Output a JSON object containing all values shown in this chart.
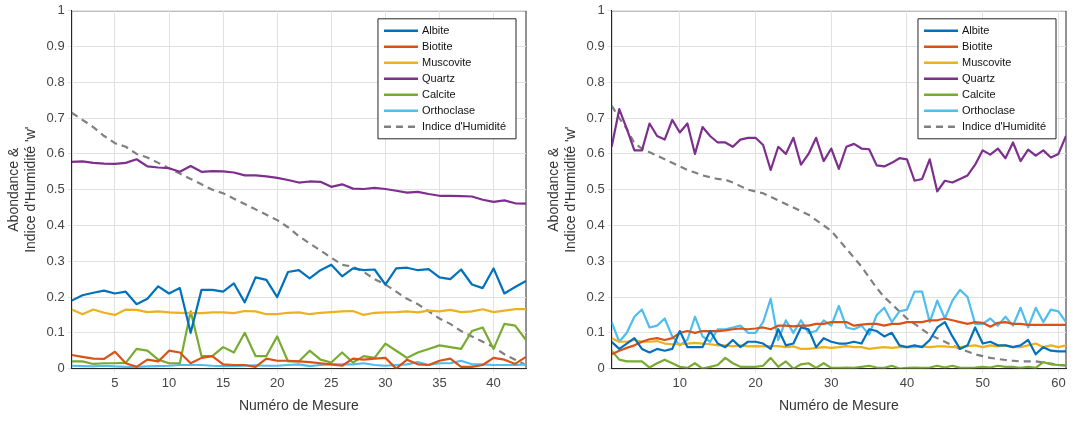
{
  "chart_data": [
    {
      "type": "line",
      "xlabel": "Numéro de Mesure",
      "ylabel": "Abondance &\nIndice d'Humidité 'w'",
      "x": [
        1,
        2,
        3,
        4,
        5,
        6,
        7,
        8,
        9,
        10,
        11,
        12,
        13,
        14,
        15,
        16,
        17,
        18,
        19,
        20,
        21,
        22,
        23,
        24,
        25,
        26,
        27,
        28,
        29,
        30,
        31,
        32,
        33,
        34,
        35,
        36,
        37,
        38,
        39,
        40,
        41,
        42,
        43
      ],
      "xlim": [
        1,
        43
      ],
      "xticks": [
        5,
        10,
        15,
        20,
        25,
        30,
        35,
        40
      ],
      "ylim": [
        0,
        1
      ],
      "yticks": [
        0,
        0.1,
        0.2,
        0.3,
        0.4,
        0.5,
        0.6,
        0.7,
        0.8,
        0.9,
        1
      ],
      "grid": true,
      "legend": "top right",
      "marker": "none",
      "series": [
        {
          "name": "Albite",
          "color": "#0072bd",
          "line_style": "solid",
          "values": [
            0.19,
            0.205,
            0.212,
            0.218,
            0.21,
            0.215,
            0.18,
            0.195,
            0.23,
            0.21,
            0.225,
            0.1,
            0.22,
            0.22,
            0.215,
            0.238,
            0.185,
            0.255,
            0.248,
            0.2,
            0.27,
            0.275,
            0.252,
            0.275,
            0.29,
            0.258,
            0.28,
            0.275,
            0.277,
            0.235,
            0.28,
            0.282,
            0.275,
            0.278,
            0.255,
            0.25,
            0.277,
            0.235,
            0.225,
            0.28,
            0.21,
            0.228,
            0.245
          ]
        },
        {
          "name": "Biotite",
          "color": "#d95319",
          "line_style": "solid",
          "values": [
            0.038,
            0.033,
            0.028,
            0.027,
            0.047,
            0.015,
            0.005,
            0.025,
            0.02,
            0.05,
            0.045,
            0.015,
            0.03,
            0.035,
            0.012,
            0.01,
            0.01,
            0.005,
            0.028,
            0.022,
            0.022,
            0.02,
            0.018,
            0.015,
            0.012,
            0.008,
            0.028,
            0.025,
            0.028,
            0.03,
            0,
            0.025,
            0.012,
            0.01,
            0.022,
            0.028,
            0.005,
            0.005,
            0.01,
            0.03,
            0.025,
            0.013,
            0.033
          ]
        },
        {
          "name": "Muscovite",
          "color": "#edb120",
          "line_style": "solid",
          "values": [
            0.165,
            0.152,
            0.165,
            0.156,
            0.15,
            0.165,
            0.164,
            0.158,
            0.16,
            0.157,
            0.156,
            0.155,
            0.155,
            0.157,
            0.157,
            0.155,
            0.161,
            0.16,
            0.152,
            0.152,
            0.156,
            0.157,
            0.152,
            0.156,
            0.158,
            0.16,
            0.161,
            0.15,
            0.156,
            0.157,
            0.158,
            0.16,
            0.157,
            0.162,
            0.16,
            0.164,
            0.158,
            0.16,
            0.166,
            0.158,
            0.162,
            0.166,
            0.166
          ]
        },
        {
          "name": "Quartz",
          "color": "#7e2f8e",
          "line_style": "solid",
          "values": [
            0.578,
            0.579,
            0.575,
            0.573,
            0.572,
            0.575,
            0.585,
            0.565,
            0.562,
            0.56,
            0.55,
            0.566,
            0.55,
            0.552,
            0.551,
            0.548,
            0.54,
            0.54,
            0.537,
            0.533,
            0.527,
            0.52,
            0.523,
            0.522,
            0.508,
            0.515,
            0.503,
            0.502,
            0.505,
            0.502,
            0.497,
            0.492,
            0.494,
            0.488,
            0.483,
            0.483,
            0.482,
            0.481,
            0.472,
            0.466,
            0.47,
            0.462,
            0.461
          ]
        },
        {
          "name": "Calcite",
          "color": "#77ac30",
          "line_style": "solid",
          "values": [
            0.02,
            0.02,
            0.013,
            0.015,
            0.015,
            0.016,
            0.055,
            0.05,
            0.025,
            0.015,
            0.015,
            0.16,
            0.035,
            0.035,
            0.06,
            0.045,
            0.1,
            0.035,
            0.035,
            0.09,
            0.02,
            0.02,
            0.05,
            0.025,
            0.017,
            0.045,
            0.017,
            0.035,
            0.03,
            0.07,
            0.05,
            0.03,
            0.045,
            0.055,
            0.065,
            0.06,
            0.055,
            0.105,
            0.115,
            0.055,
            0.125,
            0.12,
            0.08
          ]
        },
        {
          "name": "Orthoclase",
          "color": "#4dbeee",
          "line_style": "solid",
          "values": [
            0.008,
            0.007,
            0.006,
            0.008,
            0.006,
            0.005,
            0.005,
            0.006,
            0.007,
            0.008,
            0.01,
            0.01,
            0.01,
            0.008,
            0.007,
            0.007,
            0.008,
            0.009,
            0.008,
            0.008,
            0.01,
            0.012,
            0.007,
            0.01,
            0.012,
            0.012,
            0.012,
            0.015,
            0.01,
            0.008,
            0.01,
            0.012,
            0.018,
            0.01,
            0.015,
            0.015,
            0.022,
            0.012,
            0.012,
            0.01,
            0.01,
            0.01,
            0.012
          ]
        },
        {
          "name": "Indice d'Humidité",
          "color": "#808080",
          "line_style": "dashed",
          "values": [
            0.715,
            0.695,
            0.675,
            0.65,
            0.63,
            0.62,
            0.6,
            0.59,
            0.575,
            0.56,
            0.545,
            0.53,
            0.515,
            0.5,
            0.49,
            0.475,
            0.46,
            0.445,
            0.43,
            0.415,
            0.395,
            0.37,
            0.35,
            0.33,
            0.31,
            0.29,
            0.285,
            0.27,
            0.25,
            0.235,
            0.215,
            0.195,
            0.18,
            0.16,
            0.14,
            0.125,
            0.105,
            0.09,
            0.075,
            0.06,
            0.04,
            0.025,
            0.01
          ]
        }
      ]
    },
    {
      "type": "line",
      "xlabel": "Numéro de Mesure",
      "ylabel": "Abondance &\nIndice d'Humidité 'w'",
      "x": [
        1,
        2,
        3,
        4,
        5,
        6,
        7,
        8,
        9,
        10,
        11,
        12,
        13,
        14,
        15,
        16,
        17,
        18,
        19,
        20,
        21,
        22,
        23,
        24,
        25,
        26,
        27,
        28,
        29,
        30,
        31,
        32,
        33,
        34,
        35,
        36,
        37,
        38,
        39,
        40,
        41,
        42,
        43,
        44,
        45,
        46,
        47,
        48,
        49,
        50,
        51,
        52,
        53,
        54,
        55,
        56,
        57,
        58,
        59,
        60,
        61
      ],
      "xlim": [
        1,
        61
      ],
      "xticks": [
        10,
        20,
        30,
        40,
        50,
        60
      ],
      "ylim": [
        0,
        1
      ],
      "yticks": [
        0,
        0.1,
        0.2,
        0.3,
        0.4,
        0.5,
        0.6,
        0.7,
        0.8,
        0.9,
        1
      ],
      "grid": true,
      "legend": "top right",
      "marker": "none",
      "series": [
        {
          "name": "Albite",
          "color": "#0072bd",
          "line_style": "solid",
          "values": [
            0.075,
            0.055,
            0.07,
            0.085,
            0.055,
            0.045,
            0.055,
            0.05,
            0.055,
            0.105,
            0.06,
            0.06,
            0.06,
            0.105,
            0.07,
            0.06,
            0.08,
            0.06,
            0.075,
            0.075,
            0.07,
            0.055,
            0.11,
            0.065,
            0.07,
            0.115,
            0.11,
            0.06,
            0.085,
            0.075,
            0.07,
            0.07,
            0.075,
            0.07,
            0.11,
            0.105,
            0.09,
            0.1,
            0.065,
            0.06,
            0.065,
            0.06,
            0.08,
            0.115,
            0.13,
            0.09,
            0.055,
            0.065,
            0.115,
            0.07,
            0.075,
            0.065,
            0.065,
            0.06,
            0.065,
            0.08,
            0.04,
            0.06,
            0.05,
            0.048,
            0.048
          ]
        },
        {
          "name": "Biotite",
          "color": "#d95319",
          "line_style": "solid",
          "values": [
            0.04,
            0.05,
            0.058,
            0.065,
            0.075,
            0.082,
            0.085,
            0.08,
            0.085,
            0.1,
            0.105,
            0.1,
            0.105,
            0.105,
            0.105,
            0.107,
            0.11,
            0.112,
            0.11,
            0.112,
            0.115,
            0.11,
            0.12,
            0.12,
            0.118,
            0.12,
            0.12,
            0.125,
            0.125,
            0.13,
            0.13,
            0.13,
            0.12,
            0.123,
            0.125,
            0.125,
            0.12,
            0.125,
            0.125,
            0.13,
            0.13,
            0.13,
            0.135,
            0.135,
            0.14,
            0.135,
            0.13,
            0.125,
            0.13,
            0.128,
            0.117,
            0.128,
            0.13,
            0.125,
            0.125,
            0.122,
            0.122,
            0.122,
            0.122,
            0.122,
            0.122
          ]
        },
        {
          "name": "Muscovite",
          "color": "#edb120",
          "line_style": "solid",
          "values": [
            0.085,
            0.075,
            0.075,
            0.08,
            0.075,
            0.075,
            0.077,
            0.07,
            0.068,
            0.068,
            0.07,
            0.072,
            0.07,
            0.068,
            0.065,
            0.065,
            0.062,
            0.065,
            0.062,
            0.063,
            0.062,
            0.063,
            0.063,
            0.06,
            0.062,
            0.055,
            0.055,
            0.058,
            0.06,
            0.058,
            0.06,
            0.063,
            0.06,
            0.06,
            0.055,
            0.058,
            0.06,
            0.058,
            0.06,
            0.06,
            0.06,
            0.062,
            0.06,
            0.062,
            0.062,
            0.06,
            0.06,
            0.063,
            0.065,
            0.06,
            0.065,
            0.062,
            0.065,
            0.06,
            0.06,
            0.065,
            0.07,
            0.06,
            0.065,
            0.06,
            0.065
          ]
        },
        {
          "name": "Quartz",
          "color": "#7e2f8e",
          "line_style": "solid",
          "values": [
            0.62,
            0.725,
            0.67,
            0.61,
            0.61,
            0.685,
            0.65,
            0.64,
            0.695,
            0.66,
            0.685,
            0.6,
            0.675,
            0.65,
            0.632,
            0.632,
            0.62,
            0.64,
            0.645,
            0.645,
            0.625,
            0.555,
            0.62,
            0.6,
            0.645,
            0.57,
            0.6,
            0.645,
            0.58,
            0.615,
            0.558,
            0.62,
            0.628,
            0.615,
            0.613,
            0.568,
            0.565,
            0.575,
            0.588,
            0.585,
            0.525,
            0.53,
            0.585,
            0.495,
            0.525,
            0.52,
            0.53,
            0.54,
            0.57,
            0.61,
            0.598,
            0.615,
            0.588,
            0.632,
            0.58,
            0.612,
            0.595,
            0.61,
            0.59,
            0.6,
            0.65
          ]
        },
        {
          "name": "Calcite",
          "color": "#77ac30",
          "line_style": "solid",
          "values": [
            0.05,
            0.025,
            0.02,
            0.02,
            0.02,
            0.003,
            0.015,
            0.025,
            0.015,
            0.005,
            0.002,
            0.015,
            0,
            0.005,
            0.01,
            0.03,
            0.015,
            0.005,
            0.005,
            0.005,
            0.008,
            0.03,
            0.005,
            0.02,
            0,
            0.012,
            0.015,
            0.002,
            0.015,
            0.002,
            0.002,
            0.003,
            0.002,
            0.005,
            0.008,
            0.003,
            0.002,
            0.008,
            0,
            0.002,
            0.003,
            0.002,
            0.003,
            0.008,
            0.003,
            0.008,
            0.002,
            0.002,
            0.003,
            0.005,
            0.003,
            0.008,
            0.005,
            0.005,
            0.002,
            0.005,
            0.002,
            0.018,
            0.012,
            0.01,
            0.01
          ]
        },
        {
          "name": "Orthoclase",
          "color": "#4dbeee",
          "line_style": "solid",
          "values": [
            0.13,
            0.075,
            0.1,
            0.145,
            0.165,
            0.115,
            0.12,
            0.14,
            0.09,
            0.065,
            0.08,
            0.145,
            0.09,
            0.075,
            0.11,
            0.11,
            0.115,
            0.12,
            0.1,
            0.1,
            0.13,
            0.195,
            0.08,
            0.135,
            0.1,
            0.135,
            0.1,
            0.105,
            0.135,
            0.12,
            0.175,
            0.115,
            0.11,
            0.12,
            0.095,
            0.15,
            0.17,
            0.13,
            0.16,
            0.165,
            0.215,
            0.215,
            0.13,
            0.19,
            0.14,
            0.19,
            0.22,
            0.2,
            0.125,
            0.125,
            0.14,
            0.12,
            0.145,
            0.12,
            0.17,
            0.115,
            0.17,
            0.13,
            0.165,
            0.16,
            0.13
          ]
        },
        {
          "name": "Indice d'Humidité",
          "color": "#808080",
          "line_style": "dashed",
          "values": [
            0.735,
            0.7,
            0.67,
            0.63,
            0.615,
            0.605,
            0.595,
            0.585,
            0.575,
            0.565,
            0.555,
            0.548,
            0.54,
            0.535,
            0.53,
            0.528,
            0.52,
            0.51,
            0.5,
            0.495,
            0.49,
            0.48,
            0.47,
            0.46,
            0.45,
            0.44,
            0.43,
            0.415,
            0.4,
            0.385,
            0.36,
            0.335,
            0.31,
            0.285,
            0.255,
            0.225,
            0.2,
            0.18,
            0.16,
            0.14,
            0.125,
            0.11,
            0.095,
            0.085,
            0.075,
            0.065,
            0.055,
            0.048,
            0.04,
            0.035,
            0.03,
            0.027,
            0.024,
            0.022,
            0.02,
            0.02,
            0.02,
            0.017,
            0.014,
            0.01,
            0.008
          ]
        }
      ]
    }
  ]
}
